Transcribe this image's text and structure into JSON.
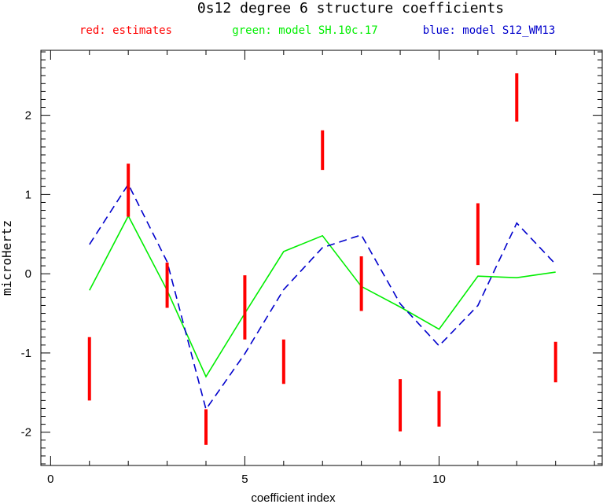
{
  "chart_data": {
    "type": "line",
    "title": "0s12 degree 6 structure coefficients",
    "xlabel": "coefficient index",
    "ylabel": "microHertz",
    "xlim": [
      -0.25,
      14.2
    ],
    "ylim": [
      -2.42,
      2.82
    ],
    "x_ticks": [
      0,
      5,
      10
    ],
    "y_ticks": [
      -2,
      -1,
      0,
      1,
      2
    ],
    "grid": false,
    "legend_placement": "top",
    "legend": [
      {
        "text": "red: estimates",
        "color": "#ff0000"
      },
      {
        "text": "green: model SH.10c.17",
        "color": "#00ee00"
      },
      {
        "text": "blue: model S12_WM13",
        "color": "#0000cc"
      }
    ],
    "estimates": {
      "name": "estimates",
      "color": "#ff0000",
      "x": [
        1,
        2,
        3,
        4,
        5,
        6,
        7,
        8,
        9,
        10,
        11,
        12,
        13
      ],
      "low": [
        -1.6,
        0.72,
        -0.43,
        -2.16,
        -0.83,
        -1.39,
        1.31,
        -0.47,
        -1.99,
        -1.93,
        0.11,
        1.92,
        -1.37
      ],
      "high": [
        -0.8,
        1.39,
        0.14,
        -1.71,
        -0.02,
        -0.83,
        1.81,
        0.22,
        -1.33,
        -1.48,
        0.89,
        2.53,
        -0.86
      ]
    },
    "series": [
      {
        "name": "model SH.10c.17",
        "color": "#00ee00",
        "style": "solid",
        "x": [
          1,
          2,
          3,
          4,
          5,
          6,
          7,
          8,
          9,
          10,
          11,
          12,
          13
        ],
        "values": [
          -0.21,
          0.73,
          -0.21,
          -1.3,
          -0.5,
          0.28,
          0.48,
          -0.16,
          -0.42,
          -0.7,
          -0.03,
          -0.05,
          0.02
        ]
      },
      {
        "name": "model S12_WM13",
        "color": "#0000cc",
        "style": "dashed",
        "x": [
          1,
          2,
          3,
          4,
          5,
          6,
          7,
          8,
          9,
          10,
          11,
          12,
          13
        ],
        "values": [
          0.37,
          1.13,
          0.15,
          -1.71,
          -1.01,
          -0.2,
          0.33,
          0.49,
          -0.38,
          -0.91,
          -0.4,
          0.64,
          0.12
        ]
      }
    ]
  }
}
